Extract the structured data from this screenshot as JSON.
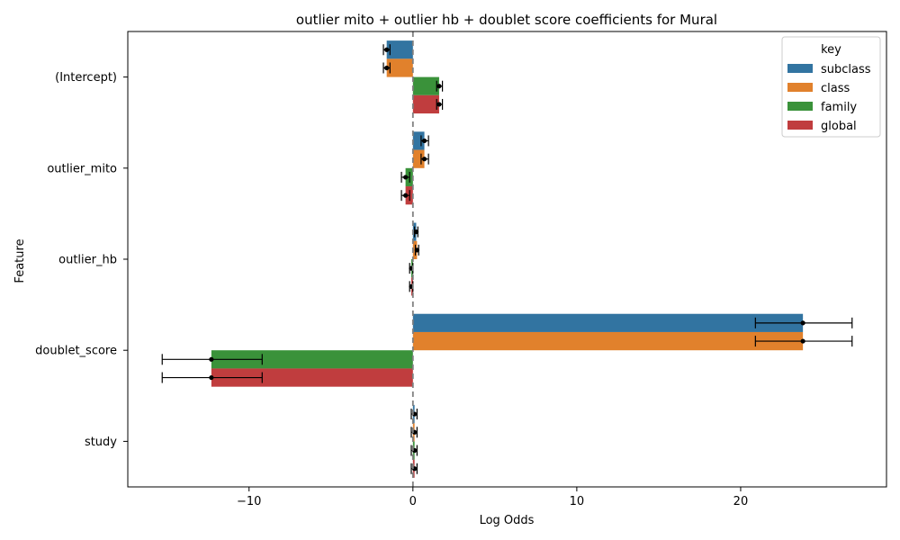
{
  "chart_data": {
    "type": "bar",
    "orientation": "horizontal",
    "title": "outlier mito + outlier hb + doublet score coefficients for Mural",
    "xlabel": "Log Odds",
    "ylabel": "Feature",
    "categories": [
      "(Intercept)",
      "outlier_mito",
      "outlier_hb",
      "doublet_score",
      "study"
    ],
    "xlim": [
      -17.4,
      28.9
    ],
    "xticks": [
      -10,
      0,
      10,
      20
    ],
    "xtick_labels": [
      "−10",
      "0",
      "10",
      "20"
    ],
    "reference_line": 0,
    "legend": {
      "title": "key",
      "placement": "top-right"
    },
    "series": [
      {
        "name": "subclass",
        "color": "#3274a1",
        "values": [
          -1.6,
          0.7,
          0.2,
          23.8,
          0.1
        ],
        "err_low": [
          -1.8,
          0.5,
          0.1,
          20.9,
          -0.1
        ],
        "err_high": [
          -1.4,
          0.95,
          0.3,
          26.8,
          0.25
        ]
      },
      {
        "name": "class",
        "color": "#e1812c",
        "values": [
          -1.6,
          0.7,
          0.25,
          23.8,
          0.1
        ],
        "err_low": [
          -1.8,
          0.5,
          0.15,
          20.9,
          -0.1
        ],
        "err_high": [
          -1.4,
          0.95,
          0.35,
          26.8,
          0.25
        ]
      },
      {
        "name": "family",
        "color": "#3a923a",
        "values": [
          1.6,
          -0.45,
          -0.1,
          -12.3,
          0.1
        ],
        "err_low": [
          1.45,
          -0.7,
          -0.2,
          -15.3,
          -0.1
        ],
        "err_high": [
          1.8,
          -0.2,
          0.0,
          -9.2,
          0.25
        ]
      },
      {
        "name": "global",
        "color": "#c03d3e",
        "values": [
          1.6,
          -0.45,
          -0.1,
          -12.3,
          0.1
        ],
        "err_low": [
          1.45,
          -0.7,
          -0.2,
          -15.3,
          -0.1
        ],
        "err_high": [
          1.8,
          -0.2,
          0.0,
          -9.2,
          0.25
        ]
      }
    ]
  }
}
